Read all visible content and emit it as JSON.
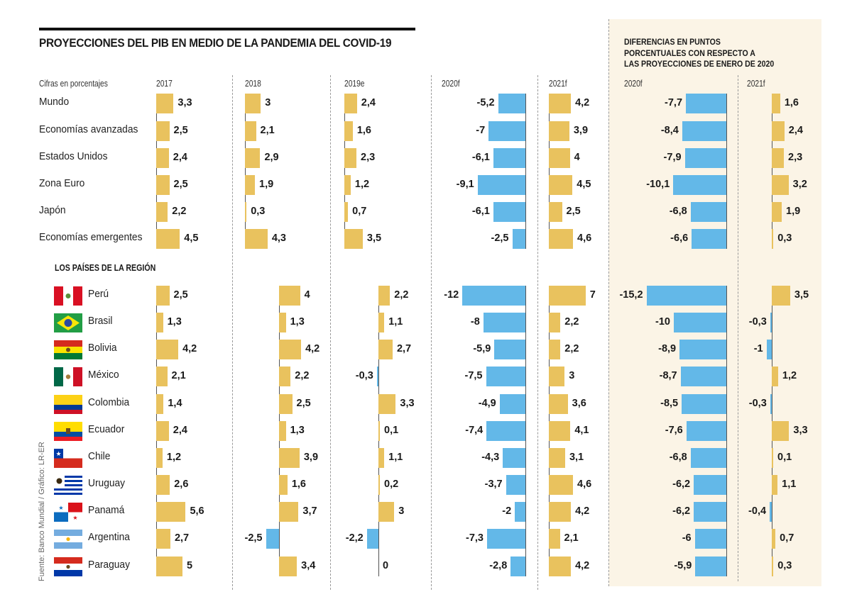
{
  "title": "PROYECCIONES DEL PIB EN MEDIO DE LA PANDEMIA DEL COVID-19",
  "units_note": "Cifras en porcentajes",
  "region_heading": "LOS PAÍSES DE LA REGIÓN",
  "diff_title_lines": [
    "DIFERENCIAS EN PUNTOS",
    "PORCENTUALES CON RESPECTO A",
    "LAS PROYECCIONES DE ENERO DE 2020"
  ],
  "source": "Fuente: Banco Mundial / Gráfico: LR-ER",
  "colors": {
    "positive": "#e9c25e",
    "negative": "#63b8e8",
    "diff_panel_bg": "#fbf4e6",
    "axis": "#555555"
  },
  "chart_data": {
    "type": "bar",
    "orientation": "horizontal",
    "title": "PROYECCIONES DEL PIB EN MEDIO DE LA PANDEMIA DEL COVID-19",
    "ylabel": "Cifras en porcentajes",
    "columns": [
      "2017",
      "2018",
      "2019e",
      "2020f",
      "2021f"
    ],
    "diff_columns": [
      "2020f",
      "2021f"
    ],
    "groups": [
      {
        "name": "global",
        "rows": [
          {
            "label": "Mundo",
            "values": [
              3.3,
              3,
              2.4,
              -5.2,
              4.2
            ],
            "diff": [
              -7.7,
              1.6
            ]
          },
          {
            "label": "Economías avanzadas",
            "values": [
              2.5,
              2.1,
              1.6,
              -7,
              3.9
            ],
            "diff": [
              -8.4,
              2.4
            ]
          },
          {
            "label": "Estados Unidos",
            "values": [
              2.4,
              2.9,
              2.3,
              -6.1,
              4
            ],
            "diff": [
              -7.9,
              2.3
            ]
          },
          {
            "label": "Zona Euro",
            "values": [
              2.5,
              1.9,
              1.2,
              -9.1,
              4.5
            ],
            "diff": [
              -10.1,
              3.2
            ]
          },
          {
            "label": "Japón",
            "values": [
              2.2,
              0.3,
              0.7,
              -6.1,
              2.5
            ],
            "diff": [
              -6.8,
              1.9
            ]
          },
          {
            "label": "Economías emergentes",
            "values": [
              4.5,
              4.3,
              3.5,
              -2.5,
              4.6
            ],
            "diff": [
              -6.6,
              0.3
            ]
          }
        ]
      },
      {
        "name": "LOS PAÍSES DE LA REGIÓN",
        "rows": [
          {
            "label": "Perú",
            "flag": "peru",
            "values": [
              2.5,
              4,
              2.2,
              -12,
              7
            ],
            "diff": [
              -15.2,
              3.5
            ]
          },
          {
            "label": "Brasil",
            "flag": "brazil",
            "values": [
              1.3,
              1.3,
              1.1,
              -8,
              2.2
            ],
            "diff": [
              -10,
              -0.3
            ]
          },
          {
            "label": "Bolivia",
            "flag": "bolivia",
            "values": [
              4.2,
              4.2,
              2.7,
              -5.9,
              2.2
            ],
            "diff": [
              -8.9,
              -1
            ]
          },
          {
            "label": "México",
            "flag": "mexico",
            "values": [
              2.1,
              2.2,
              -0.3,
              -7.5,
              3
            ],
            "diff": [
              -8.7,
              1.2
            ]
          },
          {
            "label": "Colombia",
            "flag": "colombia",
            "values": [
              1.4,
              2.5,
              3.3,
              -4.9,
              3.6
            ],
            "diff": [
              -8.5,
              -0.3
            ]
          },
          {
            "label": "Ecuador",
            "flag": "ecuador",
            "values": [
              2.4,
              1.3,
              0.1,
              -7.4,
              4.1
            ],
            "diff": [
              -7.6,
              3.3
            ]
          },
          {
            "label": "Chile",
            "flag": "chile",
            "values": [
              1.2,
              3.9,
              1.1,
              -4.3,
              3.1
            ],
            "diff": [
              -6.8,
              0.1
            ]
          },
          {
            "label": "Uruguay",
            "flag": "uruguay",
            "values": [
              2.6,
              1.6,
              0.2,
              -3.7,
              4.6
            ],
            "diff": [
              -6.2,
              1.1
            ]
          },
          {
            "label": "Panamá",
            "flag": "panama",
            "values": [
              5.6,
              3.7,
              3,
              -2,
              4.2
            ],
            "diff": [
              -6.2,
              -0.4
            ]
          },
          {
            "label": "Argentina",
            "flag": "argentina",
            "values": [
              2.7,
              -2.5,
              -2.2,
              -7.3,
              2.1
            ],
            "diff": [
              -6,
              0.7
            ]
          },
          {
            "label": "Paraguay",
            "flag": "paraguay",
            "values": [
              5,
              3.4,
              0,
              -2.8,
              4.2
            ],
            "diff": [
              -5.9,
              0.3
            ]
          }
        ]
      }
    ]
  }
}
